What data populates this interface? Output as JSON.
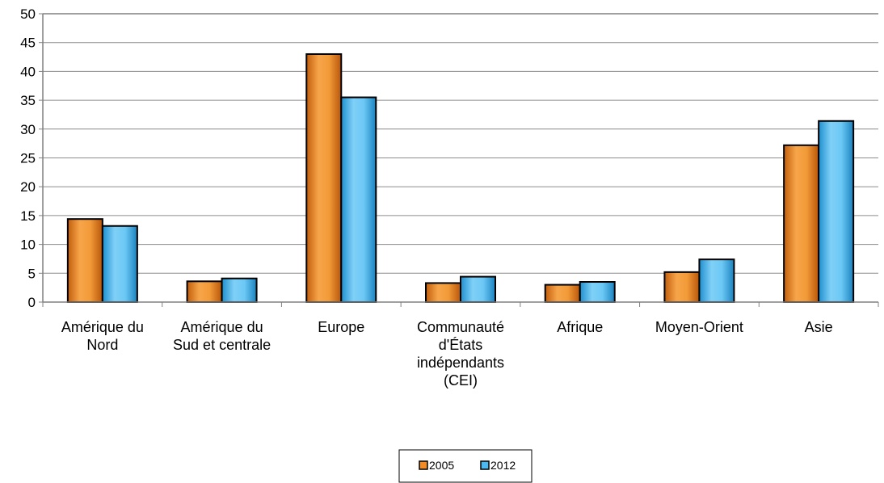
{
  "chart_data": {
    "type": "bar",
    "title": "",
    "xlabel": "",
    "ylabel": "",
    "ylim": [
      0,
      50
    ],
    "yticks": [
      0,
      5,
      10,
      15,
      20,
      25,
      30,
      35,
      40,
      45,
      50
    ],
    "grid": true,
    "legend": "bottom-center",
    "categories": [
      [
        "Amérique du",
        "Nord"
      ],
      [
        "Amérique du",
        "Sud et centrale"
      ],
      [
        "Europe"
      ],
      [
        "Communauté",
        "d'États",
        "indépendants",
        "(CEI)"
      ],
      [
        "Afrique"
      ],
      [
        "Moyen-Orient"
      ],
      [
        "Asie"
      ]
    ],
    "series": [
      {
        "name": "2005",
        "color": "#f28c28",
        "values": [
          14.4,
          3.6,
          43.0,
          3.3,
          3.0,
          5.2,
          27.2
        ]
      },
      {
        "name": "2012",
        "color": "#4db8f0",
        "values": [
          13.2,
          4.1,
          35.5,
          4.4,
          3.5,
          7.4,
          31.4
        ]
      }
    ]
  }
}
